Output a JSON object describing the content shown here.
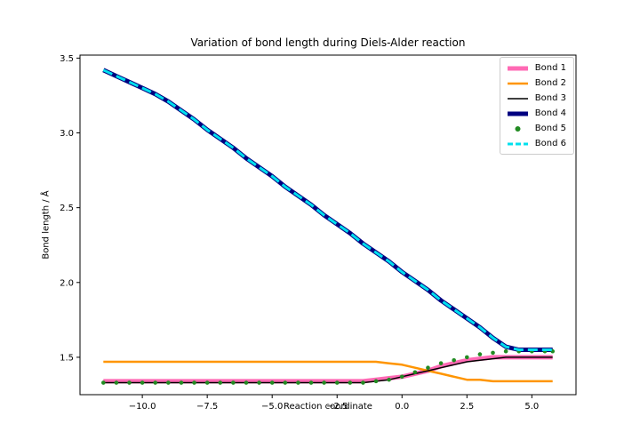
{
  "chart_data": {
    "type": "line",
    "title": "Variation of bond length during Diels-Alder reaction",
    "xlabel": "Reaction coordinate",
    "ylabel": "Bond length / Å",
    "xlim": [
      -12.4,
      6.7
    ],
    "ylim": [
      1.25,
      3.52
    ],
    "grid": false,
    "legend_position": "upper right",
    "x_ticks": [
      {
        "value": -10.0,
        "label": "−10.0"
      },
      {
        "value": -7.5,
        "label": "−7.5"
      },
      {
        "value": -5.0,
        "label": "−5.0"
      },
      {
        "value": -2.5,
        "label": "−2.5"
      },
      {
        "value": 0.0,
        "label": "0.0"
      },
      {
        "value": 2.5,
        "label": "2.5"
      },
      {
        "value": 5.0,
        "label": "5.0"
      }
    ],
    "y_ticks": [
      {
        "value": 1.5,
        "label": "1.5"
      },
      {
        "value": 2.0,
        "label": "2.0"
      },
      {
        "value": 2.5,
        "label": "2.5"
      },
      {
        "value": 3.0,
        "label": "3.0"
      },
      {
        "value": 3.5,
        "label": "3.5"
      }
    ],
    "x": [
      -11.5,
      -11.0,
      -10.5,
      -10.0,
      -9.5,
      -9.0,
      -8.5,
      -8.0,
      -7.5,
      -7.0,
      -6.5,
      -6.0,
      -5.5,
      -5.0,
      -4.5,
      -4.0,
      -3.5,
      -3.0,
      -2.5,
      -2.0,
      -1.5,
      -1.0,
      -0.5,
      0.0,
      0.5,
      1.0,
      1.5,
      2.0,
      2.5,
      3.0,
      3.5,
      4.0,
      4.5,
      5.0,
      5.5,
      5.8
    ],
    "series": [
      {
        "name": "Bond 1",
        "color": "#ff69b4",
        "width": 5,
        "dash": null,
        "marker": null,
        "values": [
          1.34,
          1.34,
          1.34,
          1.34,
          1.34,
          1.34,
          1.34,
          1.34,
          1.34,
          1.34,
          1.34,
          1.34,
          1.34,
          1.34,
          1.34,
          1.34,
          1.34,
          1.34,
          1.34,
          1.34,
          1.34,
          1.35,
          1.36,
          1.37,
          1.39,
          1.41,
          1.44,
          1.46,
          1.48,
          1.49,
          1.5,
          1.5,
          1.5,
          1.5,
          1.5,
          1.5
        ]
      },
      {
        "name": "Bond 2",
        "color": "#ff9500",
        "width": 2.5,
        "dash": null,
        "marker": null,
        "values": [
          1.47,
          1.47,
          1.47,
          1.47,
          1.47,
          1.47,
          1.47,
          1.47,
          1.47,
          1.47,
          1.47,
          1.47,
          1.47,
          1.47,
          1.47,
          1.47,
          1.47,
          1.47,
          1.47,
          1.47,
          1.47,
          1.47,
          1.46,
          1.45,
          1.43,
          1.41,
          1.39,
          1.37,
          1.35,
          1.35,
          1.34,
          1.34,
          1.34,
          1.34,
          1.34,
          1.34
        ]
      },
      {
        "name": "Bond 3",
        "color": "#000000",
        "width": 1.5,
        "dash": null,
        "marker": null,
        "values": [
          1.33,
          1.33,
          1.33,
          1.33,
          1.33,
          1.33,
          1.33,
          1.33,
          1.33,
          1.33,
          1.33,
          1.33,
          1.33,
          1.33,
          1.33,
          1.33,
          1.33,
          1.33,
          1.33,
          1.33,
          1.33,
          1.34,
          1.35,
          1.37,
          1.39,
          1.41,
          1.43,
          1.45,
          1.47,
          1.48,
          1.49,
          1.5,
          1.5,
          1.5,
          1.5,
          1.5
        ]
      },
      {
        "name": "Bond 4",
        "color": "#000080",
        "width": 5,
        "dash": null,
        "marker": null,
        "values": [
          3.42,
          3.38,
          3.34,
          3.3,
          3.26,
          3.21,
          3.15,
          3.09,
          3.02,
          2.96,
          2.9,
          2.83,
          2.77,
          2.71,
          2.64,
          2.58,
          2.52,
          2.45,
          2.39,
          2.33,
          2.26,
          2.2,
          2.14,
          2.07,
          2.01,
          1.95,
          1.88,
          1.82,
          1.76,
          1.7,
          1.63,
          1.57,
          1.55,
          1.55,
          1.55,
          1.55
        ]
      },
      {
        "name": "Bond 5",
        "color": "#228b22",
        "width": 2,
        "dash": null,
        "marker": "dot",
        "values": [
          1.33,
          1.33,
          1.33,
          1.33,
          1.33,
          1.33,
          1.33,
          1.33,
          1.33,
          1.33,
          1.33,
          1.33,
          1.33,
          1.33,
          1.33,
          1.33,
          1.33,
          1.33,
          1.33,
          1.33,
          1.33,
          1.34,
          1.35,
          1.37,
          1.4,
          1.43,
          1.46,
          1.48,
          1.5,
          1.52,
          1.53,
          1.54,
          1.54,
          1.54,
          1.54,
          1.54
        ]
      },
      {
        "name": "Bond 6",
        "color": "#00e0ee",
        "width": 3,
        "dash": "11,5",
        "marker": null,
        "values": [
          3.42,
          3.38,
          3.34,
          3.3,
          3.26,
          3.21,
          3.15,
          3.09,
          3.02,
          2.96,
          2.9,
          2.83,
          2.77,
          2.71,
          2.64,
          2.58,
          2.52,
          2.45,
          2.39,
          2.33,
          2.26,
          2.2,
          2.14,
          2.07,
          2.01,
          1.95,
          1.88,
          1.82,
          1.76,
          1.7,
          1.63,
          1.57,
          1.55,
          1.55,
          1.55,
          1.55
        ]
      }
    ]
  }
}
